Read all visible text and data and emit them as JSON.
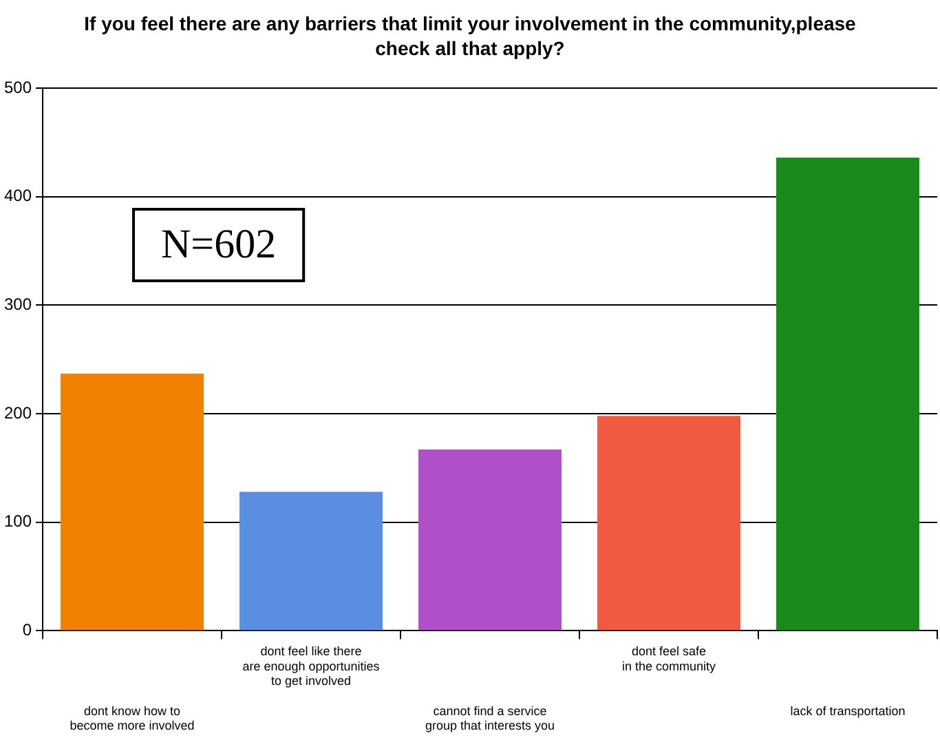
{
  "chart_data": {
    "type": "bar",
    "title": "If you feel there are any barriers that limit your involvement in the community,please\ncheck all that apply?",
    "categories": [
      "dont know how to\nbecome more involved",
      "dont feel like there\nare enough opportunities\nto get involved",
      "cannot find a service\ngroup that interests you",
      "dont feel safe\nin the community",
      "lack of transportation"
    ],
    "values": [
      237,
      128,
      167,
      198,
      436
    ],
    "colors": [
      "#f08000",
      "#5b8de0",
      "#b050c8",
      "#f05a40",
      "#1a8a1a"
    ],
    "ylim": [
      0,
      500
    ],
    "yticks": [
      0,
      100,
      200,
      300,
      400,
      500
    ],
    "grid": "y",
    "legend": false,
    "annotations": [
      "N=602"
    ]
  }
}
